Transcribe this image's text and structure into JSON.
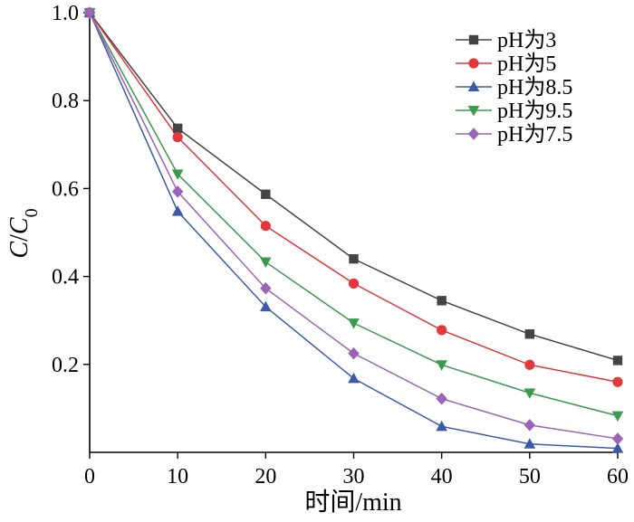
{
  "chart_data": {
    "type": "line",
    "xlabel": "时间/min",
    "ylabel_main": "C",
    "ylabel_sep": "/",
    "ylabel_sub_base": "C",
    "ylabel_sub": "0",
    "xlim": [
      0,
      60
    ],
    "ylim": [
      0,
      1.0
    ],
    "x_ticks": [
      0,
      10,
      20,
      30,
      40,
      50,
      60
    ],
    "y_ticks": [
      0.2,
      0.4,
      0.6,
      0.8,
      1.0
    ],
    "x_tick_labels": [
      "0",
      "10",
      "20",
      "30",
      "40",
      "50",
      "60"
    ],
    "y_tick_labels": [
      "0.2",
      "0.4",
      "0.6",
      "0.8",
      "1.0"
    ],
    "grid": false,
    "legend_position": "top-right",
    "x": [
      0,
      10,
      20,
      30,
      40,
      50,
      60
    ],
    "series": [
      {
        "name": "pH为3",
        "color": "#444444",
        "marker": "square",
        "values": [
          1.0,
          0.737,
          0.587,
          0.44,
          0.345,
          0.269,
          0.209
        ]
      },
      {
        "name": "pH为5",
        "color": "#e0383b",
        "marker": "circle",
        "values": [
          1.0,
          0.717,
          0.515,
          0.384,
          0.278,
          0.199,
          0.16
        ]
      },
      {
        "name": "pH为8.5",
        "color": "#3b5ba8",
        "marker": "triangle-up",
        "values": [
          1.0,
          0.548,
          0.331,
          0.168,
          0.059,
          0.019,
          0.009
        ]
      },
      {
        "name": "pH为9.5",
        "color": "#3a9a4d",
        "marker": "triangle-down",
        "values": [
          1.0,
          0.633,
          0.433,
          0.294,
          0.199,
          0.135,
          0.083
        ]
      },
      {
        "name": "pH为7.5",
        "color": "#9b63b8",
        "marker": "diamond",
        "values": [
          1.0,
          0.593,
          0.373,
          0.225,
          0.122,
          0.062,
          0.031
        ]
      }
    ]
  }
}
